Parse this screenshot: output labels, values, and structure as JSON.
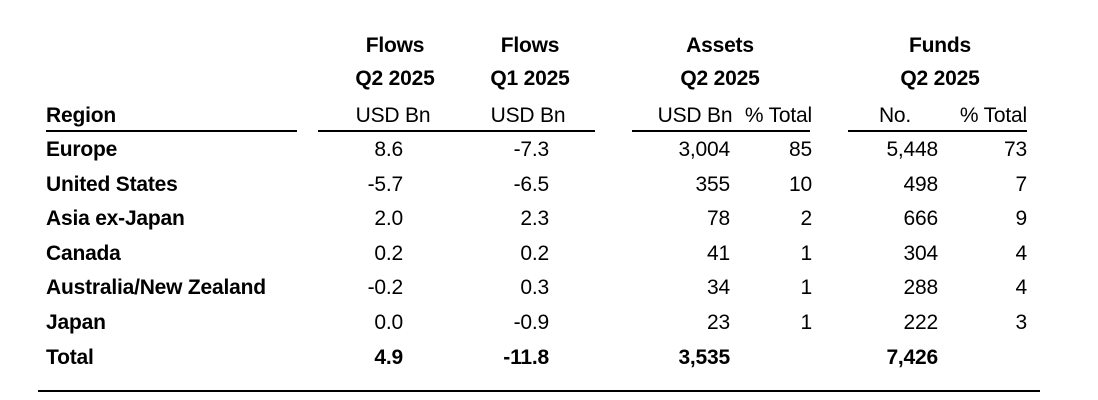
{
  "page": {
    "background": "#ffffff",
    "text_color": "#000000",
    "rule_color": "#000000"
  },
  "table": {
    "region_header": "Region",
    "column_groups": [
      {
        "id": "flows-q2",
        "title": "Flows",
        "subtitle": "Q2 2025",
        "units": [
          "USD Bn"
        ]
      },
      {
        "id": "flows-q1",
        "title": "Flows",
        "subtitle": "Q1 2025",
        "units": [
          "USD Bn"
        ]
      },
      {
        "id": "assets",
        "title": "Assets",
        "subtitle": "Q2 2025",
        "units": [
          "USD Bn",
          "% Total"
        ]
      },
      {
        "id": "funds",
        "title": "Funds",
        "subtitle": "Q2 2025",
        "units": [
          "No.",
          "% Total"
        ]
      }
    ],
    "rows": [
      {
        "region": "Europe",
        "flows_q2": "8.6",
        "flows_q1": "-7.3",
        "assets_usd_bn": "3,004",
        "assets_pct_total": "85",
        "funds_no": "5,448",
        "funds_pct_total": "73",
        "bold": false
      },
      {
        "region": "United States",
        "flows_q2": "-5.7",
        "flows_q1": "-6.5",
        "assets_usd_bn": "355",
        "assets_pct_total": "10",
        "funds_no": "498",
        "funds_pct_total": "7",
        "bold": false
      },
      {
        "region": "Asia ex-Japan",
        "flows_q2": "2.0",
        "flows_q1": "2.3",
        "assets_usd_bn": "78",
        "assets_pct_total": "2",
        "funds_no": "666",
        "funds_pct_total": "9",
        "bold": false
      },
      {
        "region": "Canada",
        "flows_q2": "0.2",
        "flows_q1": "0.2",
        "assets_usd_bn": "41",
        "assets_pct_total": "1",
        "funds_no": "304",
        "funds_pct_total": "4",
        "bold": false
      },
      {
        "region": "Australia/New Zealand",
        "flows_q2": "-0.2",
        "flows_q1": "0.3",
        "assets_usd_bn": "34",
        "assets_pct_total": "1",
        "funds_no": "288",
        "funds_pct_total": "4",
        "bold": false
      },
      {
        "region": "Japan",
        "flows_q2": "0.0",
        "flows_q1": "-0.9",
        "assets_usd_bn": "23",
        "assets_pct_total": "1",
        "funds_no": "222",
        "funds_pct_total": "3",
        "bold": false
      },
      {
        "region": "Total",
        "flows_q2": "4.9",
        "flows_q1": "-11.8",
        "assets_usd_bn": "3,535",
        "assets_pct_total": "",
        "funds_no": "7,426",
        "funds_pct_total": "",
        "bold": true
      }
    ]
  },
  "chart_data": {
    "type": "table",
    "title": "",
    "columns": [
      "Region",
      "Flows Q2 2025 (USD Bn)",
      "Flows Q1 2025 (USD Bn)",
      "Assets Q2 2025 (USD Bn)",
      "Assets Q2 2025 (% Total)",
      "Funds Q2 2025 (No.)",
      "Funds Q2 2025 (% Total)"
    ],
    "rows": [
      [
        "Europe",
        8.6,
        -7.3,
        3004,
        85,
        5448,
        73
      ],
      [
        "United States",
        -5.7,
        -6.5,
        355,
        10,
        498,
        7
      ],
      [
        "Asia ex-Japan",
        2.0,
        2.3,
        78,
        2,
        666,
        9
      ],
      [
        "Canada",
        0.2,
        0.2,
        41,
        1,
        304,
        4
      ],
      [
        "Australia/New Zealand",
        -0.2,
        0.3,
        34,
        1,
        288,
        4
      ],
      [
        "Japan",
        0.0,
        -0.9,
        23,
        1,
        222,
        3
      ],
      [
        "Total",
        4.9,
        -11.8,
        3535,
        null,
        7426,
        null
      ]
    ]
  }
}
